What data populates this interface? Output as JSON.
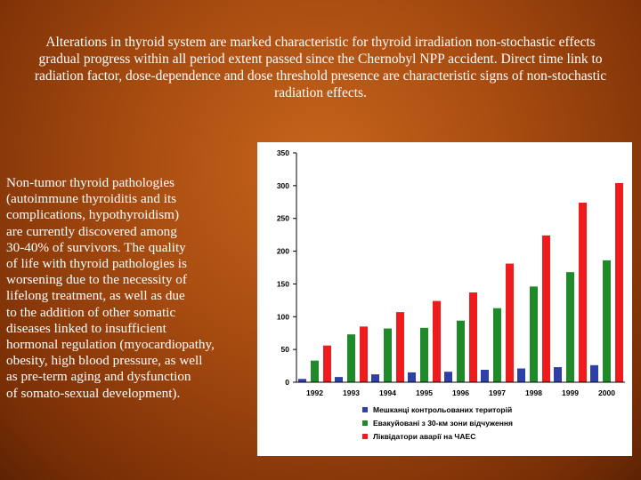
{
  "slide": {
    "title": "Alterations in thyroid system are marked characteristic for thyroid irradiation non-stochastic effects gradual progress within all period extent passed since the Chernobyl NPP accident. Direct time link to radiation factor, dose-dependence and dose threshold presence are characteristic signs of non-stochastic radiation effects.",
    "body_lines": [
      "Non-tumor thyroid pathologies",
      "(autoimmune thyroiditis and its",
      "complications, hypothyroidism)",
      "are currently discovered among",
      "30-40% of survivors. The quality",
      "of life with thyroid pathologies is",
      "worsening due to the necessity of",
      "lifelong treatment, as well as due",
      "to the addition of other somatic",
      "diseases linked to insufficient",
      "hormonal regulation (myocardiopathy,",
      "obesity, high blood pressure, as well",
      "as pre-term aging and dysfunction",
      "of somato-sexual development)."
    ]
  },
  "chart_data": {
    "type": "bar",
    "title": "",
    "xlabel": "",
    "ylabel": "",
    "categories": [
      "1992",
      "1993",
      "1994",
      "1995",
      "1996",
      "1997",
      "1998",
      "1999",
      "2000"
    ],
    "ylim": [
      0,
      350
    ],
    "yticks": [
      "0",
      "50",
      "100",
      "150",
      "200",
      "250",
      "300",
      "350"
    ],
    "grid": false,
    "legend_position": "bottom",
    "series": [
      {
        "name": "Мешканці контрольованих територій",
        "color": "#2f3fa8",
        "values": [
          5,
          8,
          12,
          15,
          16,
          19,
          21,
          23,
          26
        ]
      },
      {
        "name": "Евакуйовані з 30-км зони відчуження",
        "color": "#1f8a2a",
        "values": [
          33,
          73,
          82,
          83,
          94,
          113,
          146,
          168,
          186
        ]
      },
      {
        "name": "Ліквідатори аварії на ЧАЕС",
        "color": "#ee1c1c",
        "values": [
          56,
          85,
          107,
          124,
          137,
          181,
          224,
          274,
          304
        ]
      }
    ]
  }
}
